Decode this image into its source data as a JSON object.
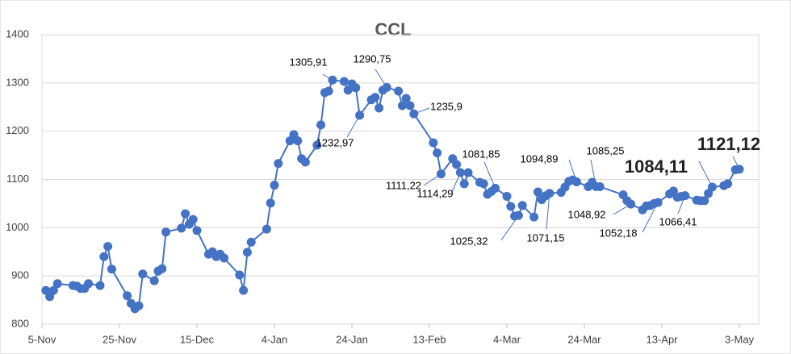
{
  "chart_data": {
    "type": "line",
    "title": "CCL",
    "color": "#4472c4",
    "x": [
      "6-Nov",
      "7-Nov",
      "8-Nov",
      "9-Nov",
      "13-Nov",
      "14-Nov",
      "15-Nov",
      "16-Nov",
      "17-Nov",
      "20-Nov",
      "21-Nov",
      "22-Nov",
      "23-Nov",
      "27-Nov",
      "28-Nov",
      "29-Nov",
      "30-Nov",
      "1-Dec",
      "4-Dec",
      "5-Dec",
      "6-Dec",
      "7-Dec",
      "11-Dec",
      "12-Dec",
      "13-Dec",
      "14-Dec",
      "15-Dec",
      "18-Dec",
      "19-Dec",
      "20-Dec",
      "21-Dec",
      "22-Dec",
      "26-Dec",
      "27-Dec",
      "28-Dec",
      "29-Dec",
      "2-Jan",
      "3-Jan",
      "4-Jan",
      "5-Jan",
      "8-Jan",
      "9-Jan",
      "10-Jan",
      "11-Jan",
      "12-Jan",
      "15-Jan",
      "16-Jan",
      "17-Jan",
      "18-Jan",
      "19-Jan",
      "22-Jan",
      "23-Jan",
      "24-Jan",
      "25-Jan",
      "26-Jan",
      "29-Jan",
      "30-Jan",
      "31-Jan",
      "1-Feb",
      "2-Feb",
      "5-Feb",
      "6-Feb",
      "7-Feb",
      "8-Feb",
      "9-Feb",
      "14-Feb",
      "15-Feb",
      "16-Feb",
      "19-Feb",
      "20-Feb",
      "21-Feb",
      "22-Feb",
      "23-Feb",
      "26-Feb",
      "27-Feb",
      "28-Feb",
      "29-Feb",
      "1-Mar",
      "4-Mar",
      "5-Mar",
      "6-Mar",
      "7-Mar",
      "8-Mar",
      "11-Mar",
      "12-Mar",
      "13-Mar",
      "14-Mar",
      "15-Mar",
      "18-Mar",
      "19-Mar",
      "20-Mar",
      "21-Mar",
      "22-Mar",
      "25-Mar",
      "26-Mar",
      "27-Mar",
      "28-Mar",
      "3-Apr",
      "4-Apr",
      "5-Apr",
      "8-Apr",
      "9-Apr",
      "10-Apr",
      "11-Apr",
      "12-Apr",
      "15-Apr",
      "16-Apr",
      "17-Apr",
      "18-Apr",
      "19-Apr",
      "22-Apr",
      "23-Apr",
      "24-Apr",
      "25-Apr",
      "26-Apr",
      "29-Apr",
      "30-Apr",
      "2-May",
      "3-May"
    ],
    "values": [
      870,
      857,
      870,
      884,
      880,
      879,
      874,
      874,
      884,
      880,
      940,
      961,
      914,
      859,
      843,
      832,
      838,
      904,
      890,
      910,
      915,
      991,
      999,
      1029,
      1007,
      1017,
      994,
      945,
      950,
      940,
      945,
      937,
      902,
      870,
      949,
      970,
      997,
      1051,
      1088,
      1133,
      1180,
      1193,
      1180,
      1143,
      1136,
      1171,
      1213,
      1280,
      1283,
      1305.91,
      1303,
      1285,
      1298,
      1290,
      1232.97,
      1265,
      1270,
      1248,
      1285,
      1290.75,
      1283,
      1253,
      1268,
      1253,
      1235.9,
      1176,
      1155,
      1111.22,
      1143,
      1131,
      1114.29,
      1091,
      1114,
      1094,
      1091,
      1069,
      1075,
      1081.85,
      1065,
      1044,
      1024,
      1025.32,
      1046,
      1022,
      1074,
      1058,
      1066,
      1071.15,
      1073,
      1084,
      1096,
      1099,
      1094.89,
      1085,
      1094,
      1085.25,
      1085,
      1068,
      1056,
      1048.92,
      1037,
      1045,
      1046,
      1050,
      1052.18,
      1070,
      1076,
      1063,
      1065,
      1066.41,
      1057,
      1056,
      1056,
      1071,
      1084.11,
      1087,
      1091,
      1120,
      1121.12
    ],
    "value_labels": [
      null,
      null,
      null,
      null,
      null,
      null,
      null,
      null,
      null,
      null,
      null,
      null,
      null,
      null,
      null,
      null,
      null,
      null,
      null,
      null,
      null,
      null,
      null,
      null,
      null,
      null,
      null,
      null,
      null,
      null,
      null,
      null,
      null,
      null,
      null,
      null,
      null,
      null,
      null,
      null,
      null,
      null,
      null,
      null,
      null,
      null,
      null,
      null,
      null,
      "1305,91",
      null,
      null,
      null,
      null,
      "1232,97",
      null,
      null,
      null,
      null,
      "1290,75",
      null,
      null,
      null,
      null,
      "1235,9",
      null,
      null,
      "1111,22",
      null,
      null,
      "1114,29",
      null,
      null,
      null,
      null,
      null,
      null,
      "1081,85",
      null,
      null,
      null,
      "1025,32",
      null,
      null,
      null,
      null,
      null,
      "1071,15",
      null,
      null,
      null,
      null,
      "1094,89",
      null,
      null,
      "1085,25",
      null,
      null,
      null,
      "1048,92",
      null,
      null,
      null,
      null,
      "1052,18",
      null,
      null,
      null,
      null,
      "1066,41",
      null,
      null,
      null,
      null,
      "1084,11",
      null,
      null,
      null,
      "1121,12"
    ],
    "xlim": [
      "5-Nov",
      "8-May"
    ],
    "xticks": [
      "5-Nov",
      "25-Nov",
      "15-Dec",
      "4-Jan",
      "24-Jan",
      "13-Feb",
      "4-Mar",
      "24-Mar",
      "13-Apr",
      "3-May"
    ],
    "ylim": [
      800,
      1400
    ],
    "yticks": [
      800,
      900,
      1000,
      1100,
      1200,
      1300,
      1400
    ],
    "grid": true
  }
}
